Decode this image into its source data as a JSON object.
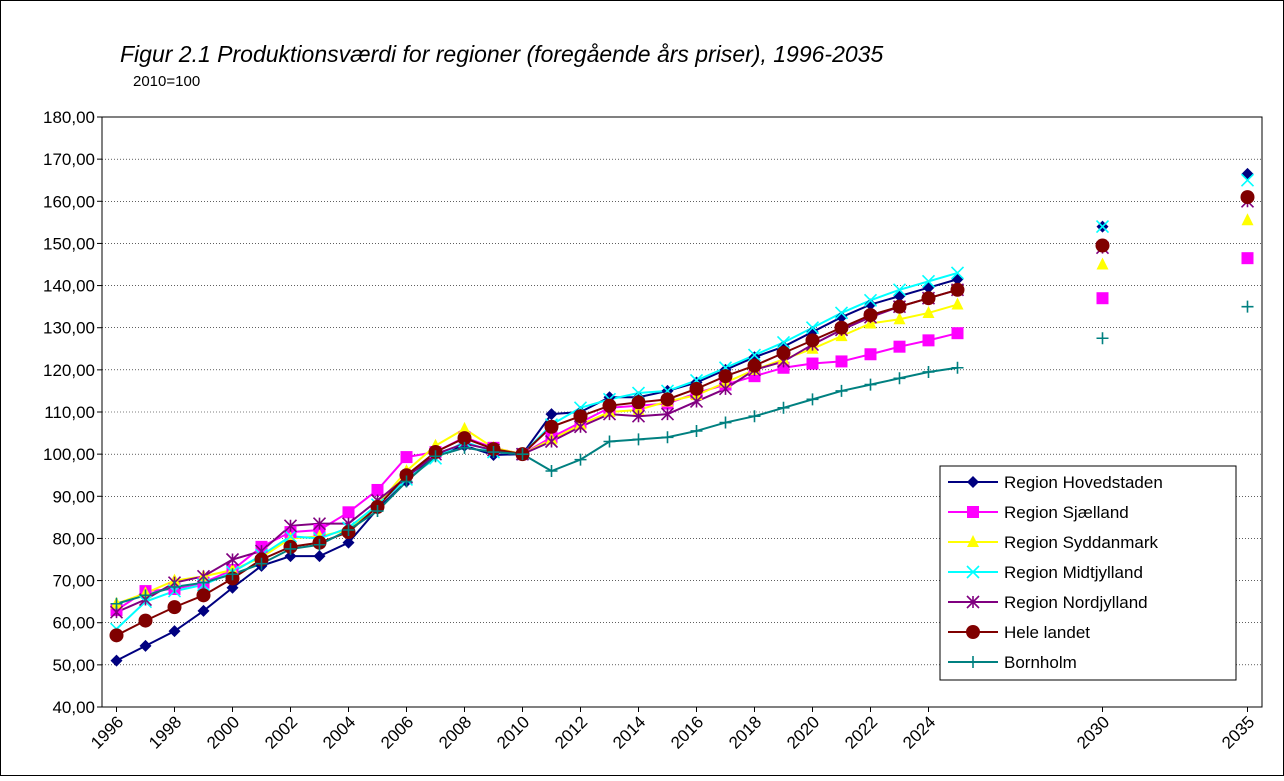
{
  "chart_data": {
    "type": "line",
    "title": "Figur 2.1 Produktionsværdi for regioner (foregående års priser), 1996-2035",
    "subtitle": "2010=100",
    "x": [
      1996,
      1997,
      1998,
      1999,
      2000,
      2001,
      2002,
      2003,
      2004,
      2005,
      2006,
      2007,
      2008,
      2009,
      2010,
      2011,
      2012,
      2013,
      2014,
      2015,
      2016,
      2017,
      2018,
      2019,
      2020,
      2021,
      2022,
      2023,
      2024,
      2025,
      2026,
      2027,
      2028,
      2029,
      2030,
      2031,
      2032,
      2033,
      2034,
      2035
    ],
    "xlim": [
      1995.5,
      2035.5
    ],
    "xticks": [
      1996,
      1998,
      2000,
      2002,
      2004,
      2006,
      2008,
      2010,
      2012,
      2014,
      2016,
      2018,
      2020,
      2022,
      2024,
      2030,
      2035
    ],
    "ylim": [
      40,
      180
    ],
    "yticks": [
      {
        "value": 40,
        "label": "40,00"
      },
      {
        "value": 50,
        "label": "50,00"
      },
      {
        "value": 60,
        "label": "60,00"
      },
      {
        "value": 70,
        "label": "70,00"
      },
      {
        "value": 80,
        "label": "80,00"
      },
      {
        "value": 90,
        "label": "90,00"
      },
      {
        "value": 100,
        "label": "100,00"
      },
      {
        "value": 110,
        "label": "110,00"
      },
      {
        "value": 120,
        "label": "120,00"
      },
      {
        "value": 130,
        "label": "130,00"
      },
      {
        "value": 140,
        "label": "140,00"
      },
      {
        "value": 150,
        "label": "150,00"
      },
      {
        "value": 160,
        "label": "160,00"
      },
      {
        "value": 170,
        "label": "170,00"
      },
      {
        "value": 180,
        "label": "180,00"
      }
    ],
    "grid": true,
    "legend": "lower right",
    "series": [
      {
        "name": "Region Hovedstaden",
        "color": "#000080",
        "marker": "diamond",
        "values": [
          51,
          54.5,
          58,
          62.8,
          68.3,
          73.5,
          75.8,
          75.8,
          79,
          87,
          93.5,
          100,
          102,
          99.8,
          100,
          109.5,
          110,
          113.5,
          113.5,
          115,
          117,
          120,
          123,
          125.5,
          129,
          132.5,
          135.5,
          137.5,
          139.5,
          141.5,
          null,
          null,
          null,
          null,
          154,
          null,
          null,
          null,
          null,
          166.5
        ]
      },
      {
        "name": "Region Sjælland",
        "color": "#FF00FF",
        "marker": "square",
        "values": [
          63,
          67.5,
          68,
          69.5,
          72.5,
          78,
          81.5,
          82,
          86.2,
          91.5,
          99.3,
          100.5,
          104,
          101.5,
          100,
          104,
          107.5,
          111,
          111.5,
          112,
          114.5,
          116.5,
          118.5,
          120.5,
          121.5,
          122,
          123.7,
          125.5,
          127,
          128.7,
          null,
          null,
          null,
          null,
          137,
          null,
          null,
          null,
          null,
          146.5
        ]
      },
      {
        "name": "Region Syddanmark",
        "color": "#FFFF00",
        "marker": "triangle",
        "values": [
          64.5,
          67,
          70,
          71,
          72.5,
          75.5,
          80,
          80.5,
          82,
          88,
          96,
          102,
          106,
          101.5,
          100,
          103.5,
          107,
          110,
          110.5,
          112.5,
          114,
          117,
          120,
          122.5,
          125,
          128,
          131,
          132,
          133.5,
          135.5,
          null,
          null,
          null,
          null,
          145,
          null,
          null,
          null,
          null,
          155.5
        ]
      },
      {
        "name": "Region Midtjylland",
        "color": "#00FFFF",
        "marker": "x",
        "values": [
          58.5,
          65,
          67.5,
          69,
          72,
          76,
          80.5,
          80,
          82.5,
          88,
          94,
          99,
          103,
          100.5,
          100,
          107,
          111,
          113,
          114.5,
          115,
          117.5,
          120.5,
          123.5,
          126.5,
          130,
          133.5,
          136.5,
          139,
          141,
          143,
          null,
          null,
          null,
          null,
          154,
          null,
          null,
          null,
          null,
          165
        ]
      },
      {
        "name": "Region Nordjylland",
        "color": "#800080",
        "marker": "star",
        "values": [
          62.5,
          65.5,
          69.5,
          71,
          75,
          77,
          83,
          83.5,
          83.5,
          89,
          94.5,
          100,
          102.5,
          101,
          100,
          103,
          106.5,
          109.5,
          109,
          109.5,
          112.5,
          115.5,
          120,
          122,
          126,
          129.5,
          132.5,
          135,
          137,
          139,
          null,
          null,
          null,
          null,
          149,
          null,
          null,
          null,
          null,
          160
        ]
      },
      {
        "name": "Hele landet",
        "color": "#800000",
        "marker": "circle",
        "values": [
          57,
          60.5,
          63.7,
          66.5,
          70.5,
          75,
          78,
          79,
          81.5,
          87.5,
          95,
          100.5,
          103.8,
          101.2,
          100,
          106.5,
          109,
          111.5,
          112.3,
          113,
          115.5,
          118.5,
          121,
          124,
          127,
          130,
          133,
          135,
          137,
          139,
          null,
          null,
          null,
          null,
          149.5,
          null,
          null,
          null,
          null,
          161
        ]
      },
      {
        "name": "Bornholm",
        "color": "#008080",
        "marker": "plus",
        "values": [
          64.5,
          66.5,
          68.5,
          69.5,
          71.5,
          74,
          77.5,
          78.5,
          82,
          86.5,
          93.5,
          99.5,
          101.5,
          100.5,
          100,
          96,
          98.7,
          103,
          103.5,
          104,
          105.5,
          107.5,
          109,
          111,
          113,
          115,
          116.5,
          118,
          119.5,
          120.5,
          null,
          null,
          null,
          null,
          127.5,
          null,
          null,
          null,
          null,
          135
        ]
      }
    ]
  }
}
